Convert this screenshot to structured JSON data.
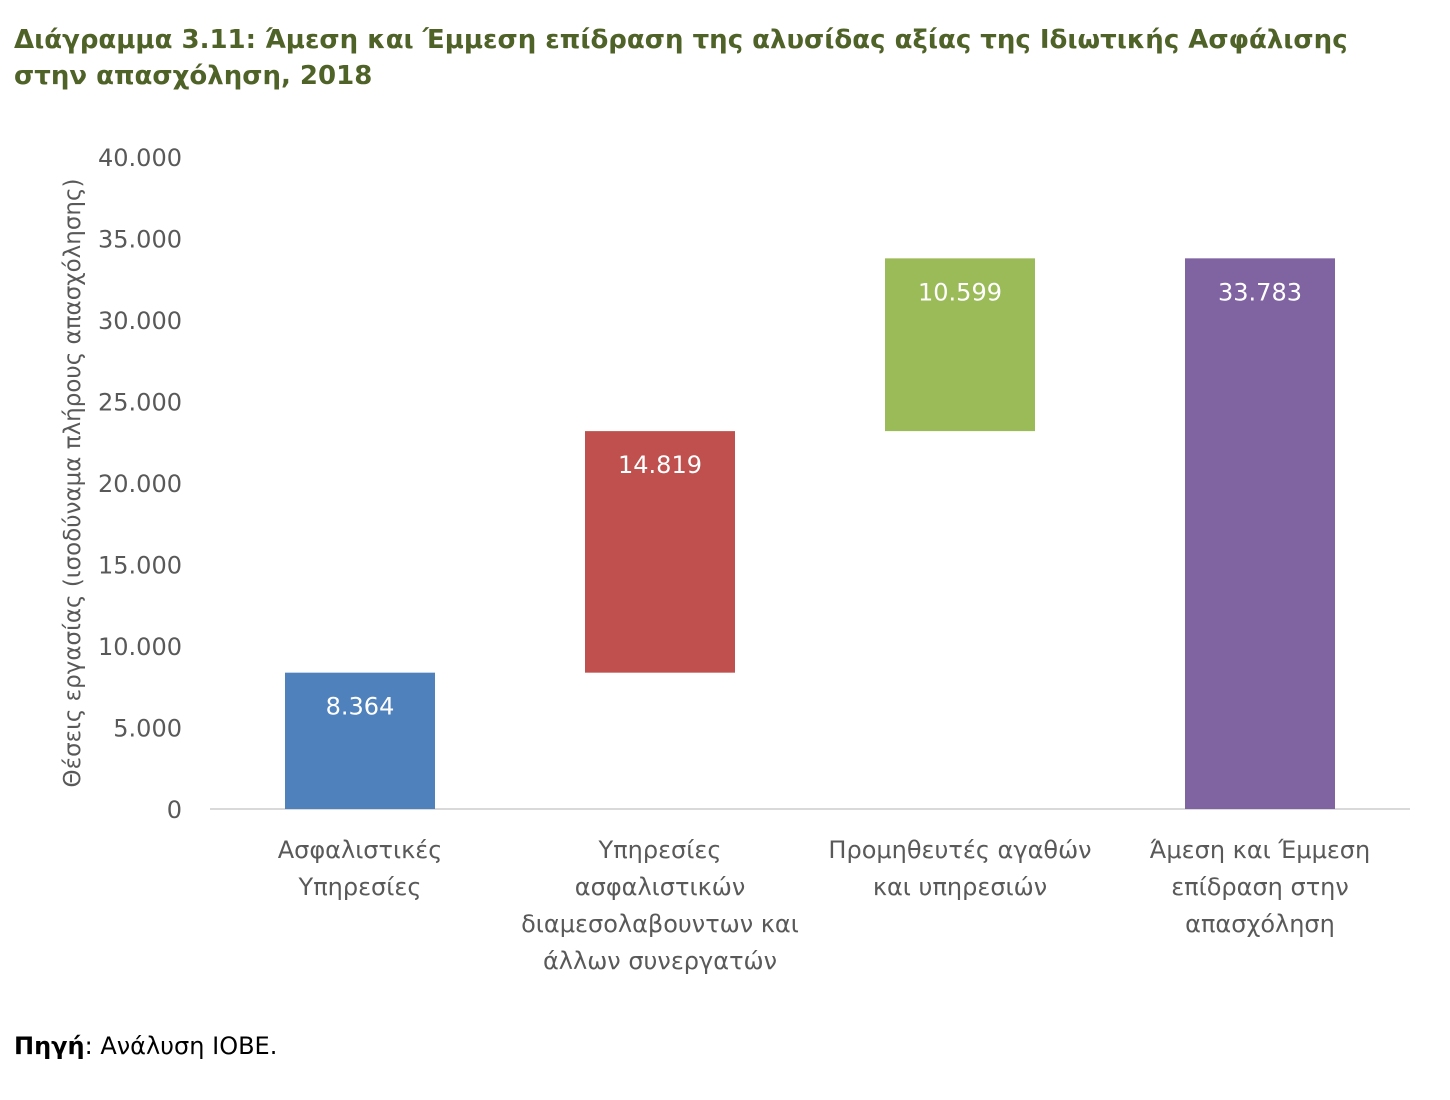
{
  "figure": {
    "title": "Διάγραμμα 3.11: Άμεση και Έμμεση επίδραση της αλυσίδας αξίας της Ιδιωτικής Ασφάλισης στην απασχόληση, 2018",
    "source_label": "Πηγή",
    "source_text": ": Ανάλυση ΙΟΒΕ."
  },
  "chart_data": {
    "type": "bar",
    "subtype": "waterfall",
    "title": "",
    "ylabel": "Θέσεις εργασίας (ισοδύναμα πλήρους απασχόλησης)",
    "xlabel": "",
    "ylim": [
      0,
      40000
    ],
    "yticks": [
      0,
      5000,
      10000,
      15000,
      20000,
      25000,
      30000,
      35000,
      40000
    ],
    "ytick_labels": [
      "0",
      "5.000",
      "10.000",
      "15.000",
      "20.000",
      "25.000",
      "30.000",
      "35.000",
      "40.000"
    ],
    "grid": false,
    "legend": "none",
    "categories": [
      [
        "Ασφαλιστικές",
        "Υπηρεσίες"
      ],
      [
        "Υπηρεσίες",
        "ασφαλιστικών",
        "διαμεσολαβουντων και",
        "άλλων συνεργατών"
      ],
      [
        "Προμηθευτές αγαθών",
        "και υπηρεσιών"
      ],
      [
        "Άμεση και Έμμεση",
        "επίδραση στην",
        "απασχόληση"
      ]
    ],
    "values": [
      8364,
      14819,
      10599,
      33783
    ],
    "bases": [
      0,
      8364,
      23183,
      0
    ],
    "value_labels": [
      "8.364",
      "14.819",
      "10.599",
      "33.783"
    ],
    "colors": [
      "#4f81bd",
      "#c0504d",
      "#9bbb59",
      "#8064a2"
    ]
  }
}
